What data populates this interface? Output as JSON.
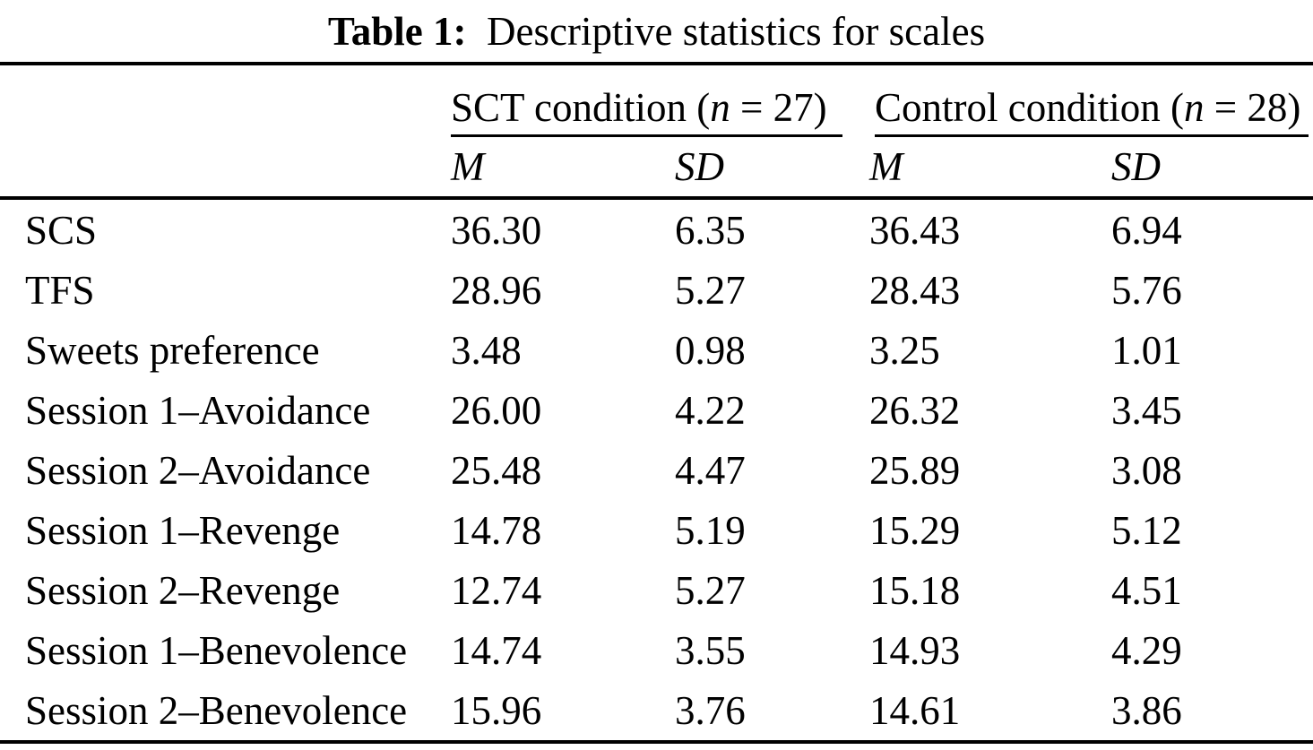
{
  "page": {
    "background_color": "#ffffff",
    "text_color": "#000000"
  },
  "table": {
    "title": {
      "label": "Table 1:",
      "text": "Descriptive statistics for scales"
    },
    "column_groups": {
      "sct": {
        "prefix": "SCT condition (",
        "n": "n",
        "suffix": " = 27)"
      },
      "control": {
        "prefix": "Control condition (",
        "n": "n",
        "suffix": " = 28)"
      }
    },
    "subheaders": {
      "sct_m": "M",
      "sct_sd": "SD",
      "ctrl_m": "M",
      "ctrl_sd": "SD"
    },
    "rows": [
      {
        "label": "SCS",
        "sct_m": "36.30",
        "sct_sd": "6.35",
        "ctrl_m": "36.43",
        "ctrl_sd": "6.94"
      },
      {
        "label": "TFS",
        "sct_m": "28.96",
        "sct_sd": "5.27",
        "ctrl_m": "28.43",
        "ctrl_sd": "5.76"
      },
      {
        "label": "Sweets preference",
        "sct_m": "3.48",
        "sct_sd": "0.98",
        "ctrl_m": "3.25",
        "ctrl_sd": "1.01"
      },
      {
        "label": "Session 1–Avoidance",
        "sct_m": "26.00",
        "sct_sd": "4.22",
        "ctrl_m": "26.32",
        "ctrl_sd": "3.45"
      },
      {
        "label": "Session 2–Avoidance",
        "sct_m": "25.48",
        "sct_sd": "4.47",
        "ctrl_m": "25.89",
        "ctrl_sd": "3.08"
      },
      {
        "label": "Session 1–Revenge",
        "sct_m": "14.78",
        "sct_sd": "5.19",
        "ctrl_m": "15.29",
        "ctrl_sd": "5.12"
      },
      {
        "label": "Session 2–Revenge",
        "sct_m": "12.74",
        "sct_sd": "5.27",
        "ctrl_m": "15.18",
        "ctrl_sd": "4.51"
      },
      {
        "label": "Session 1–Benevolence",
        "sct_m": "14.74",
        "sct_sd": "3.55",
        "ctrl_m": "14.93",
        "ctrl_sd": "4.29"
      },
      {
        "label": "Session 2–Benevolence",
        "sct_m": "15.96",
        "sct_sd": "3.76",
        "ctrl_m": "14.61",
        "ctrl_sd": "3.86"
      }
    ]
  }
}
